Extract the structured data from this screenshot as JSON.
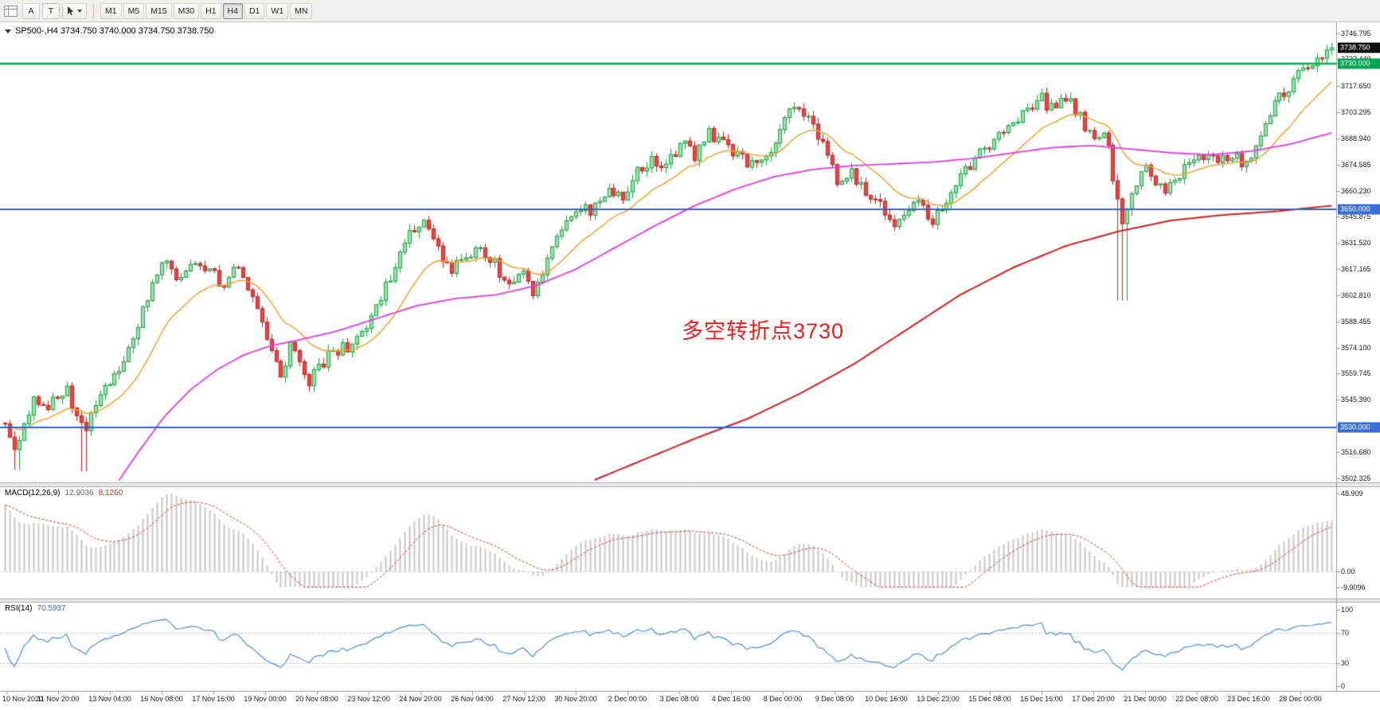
{
  "toolbar": {
    "tool_buttons": [
      {
        "label": "A"
      },
      {
        "label": "T"
      }
    ],
    "timeframes": [
      "M1",
      "M5",
      "M15",
      "M30",
      "H1",
      "H4",
      "D1",
      "W1",
      "MN"
    ],
    "active_timeframe": "H4"
  },
  "chart": {
    "symbol_line": "SP500-,H4  3734.750 3740.000 3734.750 3738.750",
    "annotation": {
      "text": "多空转折点3730",
      "color": "#f01e1e"
    },
    "price_axis_labels": [
      "3746.795",
      "3732.440",
      "3717.650",
      "3703.295",
      "3688.940",
      "3674.585",
      "3660.230",
      "3645.875",
      "3631.520",
      "3617.165",
      "3602.810",
      "3588.455",
      "3574.100",
      "3559.745",
      "3545.390",
      "3531.035",
      "3516.680",
      "3502.325"
    ],
    "badges": [
      {
        "value": "3738.750",
        "price": 3738.75,
        "bg": "#111111"
      },
      {
        "value": "3730.000",
        "price": 3730.0,
        "bg": "#00a651"
      },
      {
        "value": "3650.000",
        "price": 3650.0,
        "bg": "#3a6fd8"
      },
      {
        "value": "3530.000",
        "price": 3530.0,
        "bg": "#3a6fd8"
      }
    ],
    "hlines": [
      {
        "price": 3730.0,
        "color": "#00b050",
        "width": 2.4
      },
      {
        "price": 3650.0,
        "color": "#2f63c9",
        "width": 2
      },
      {
        "price": 3530.0,
        "color": "#2f63c9",
        "width": 2
      }
    ]
  },
  "macd": {
    "name": "MACD(12,26,9)",
    "value_main": "12.9036",
    "value_signal": "8.1260",
    "axis_labels": [
      "48.909",
      "0.00",
      "-9.9096"
    ]
  },
  "rsi": {
    "name": "RSI(14)",
    "value": "70.5937",
    "axis_labels": [
      "100",
      "70",
      "30",
      "0"
    ],
    "levels": [
      70,
      30
    ]
  },
  "chart_data": {
    "type": "candlestick",
    "symbol": "SP500-",
    "timeframe": "H4",
    "ohlc_current": {
      "open": 3734.75,
      "high": 3740.0,
      "low": 3734.75,
      "close": 3738.75
    },
    "price_range": [
      3500,
      3751
    ],
    "bar_count": 280,
    "last_close": 3738.75,
    "price_path": [
      [
        0.0,
        3534
      ],
      [
        0.008,
        3516
      ],
      [
        0.022,
        3548
      ],
      [
        0.032,
        3540
      ],
      [
        0.045,
        3552
      ],
      [
        0.06,
        3528
      ],
      [
        0.072,
        3548
      ],
      [
        0.086,
        3562
      ],
      [
        0.1,
        3587
      ],
      [
        0.109,
        3606
      ],
      [
        0.12,
        3621
      ],
      [
        0.132,
        3611
      ],
      [
        0.142,
        3621
      ],
      [
        0.155,
        3616
      ],
      [
        0.165,
        3606
      ],
      [
        0.175,
        3619
      ],
      [
        0.188,
        3601
      ],
      [
        0.198,
        3577
      ],
      [
        0.208,
        3558
      ],
      [
        0.217,
        3580
      ],
      [
        0.227,
        3554
      ],
      [
        0.237,
        3563
      ],
      [
        0.247,
        3572
      ],
      [
        0.26,
        3575
      ],
      [
        0.272,
        3587
      ],
      [
        0.283,
        3602
      ],
      [
        0.296,
        3621
      ],
      [
        0.306,
        3639
      ],
      [
        0.316,
        3645
      ],
      [
        0.326,
        3630
      ],
      [
        0.336,
        3615
      ],
      [
        0.346,
        3625
      ],
      [
        0.356,
        3628
      ],
      [
        0.369,
        3620
      ],
      [
        0.379,
        3605
      ],
      [
        0.389,
        3615
      ],
      [
        0.399,
        3602
      ],
      [
        0.408,
        3621
      ],
      [
        0.422,
        3645
      ],
      [
        0.432,
        3653
      ],
      [
        0.441,
        3648
      ],
      [
        0.455,
        3663
      ],
      [
        0.464,
        3656
      ],
      [
        0.474,
        3668
      ],
      [
        0.487,
        3677
      ],
      [
        0.497,
        3671
      ],
      [
        0.51,
        3687
      ],
      [
        0.52,
        3680
      ],
      [
        0.53,
        3692
      ],
      [
        0.543,
        3684
      ],
      [
        0.553,
        3679
      ],
      [
        0.563,
        3674
      ],
      [
        0.576,
        3682
      ],
      [
        0.59,
        3703
      ],
      [
        0.6,
        3705
      ],
      [
        0.61,
        3696
      ],
      [
        0.62,
        3681
      ],
      [
        0.629,
        3662
      ],
      [
        0.639,
        3670
      ],
      [
        0.649,
        3659
      ],
      [
        0.659,
        3655
      ],
      [
        0.669,
        3640
      ],
      [
        0.679,
        3648
      ],
      [
        0.688,
        3656
      ],
      [
        0.698,
        3643
      ],
      [
        0.708,
        3653
      ],
      [
        0.718,
        3668
      ],
      [
        0.728,
        3675
      ],
      [
        0.738,
        3682
      ],
      [
        0.751,
        3692
      ],
      [
        0.761,
        3699
      ],
      [
        0.771,
        3706
      ],
      [
        0.781,
        3711
      ],
      [
        0.79,
        3704
      ],
      [
        0.8,
        3713
      ],
      [
        0.81,
        3701
      ],
      [
        0.82,
        3687
      ],
      [
        0.83,
        3692
      ],
      [
        0.838,
        3655
      ],
      [
        0.843,
        3641
      ],
      [
        0.85,
        3659
      ],
      [
        0.857,
        3675
      ],
      [
        0.866,
        3668
      ],
      [
        0.876,
        3660
      ],
      [
        0.886,
        3670
      ],
      [
        0.896,
        3677
      ],
      [
        0.906,
        3682
      ],
      [
        0.916,
        3677
      ],
      [
        0.926,
        3680
      ],
      [
        0.935,
        3675
      ],
      [
        0.945,
        3687
      ],
      [
        0.955,
        3706
      ],
      [
        0.965,
        3716
      ],
      [
        0.975,
        3723
      ],
      [
        0.985,
        3731
      ],
      [
        1.0,
        3739
      ]
    ],
    "wick_events": [
      [
        0.01,
        3507
      ],
      [
        0.06,
        3506
      ],
      [
        0.842,
        3600
      ]
    ],
    "ma_medium_path": [
      [
        0.085,
        3500
      ],
      [
        0.1,
        3516
      ],
      [
        0.12,
        3536
      ],
      [
        0.14,
        3551
      ],
      [
        0.16,
        3562
      ],
      [
        0.18,
        3570
      ],
      [
        0.2,
        3575
      ],
      [
        0.22,
        3578
      ],
      [
        0.25,
        3583
      ],
      [
        0.28,
        3590
      ],
      [
        0.31,
        3597
      ],
      [
        0.34,
        3601
      ],
      [
        0.37,
        3603
      ],
      [
        0.4,
        3608
      ],
      [
        0.43,
        3617
      ],
      [
        0.46,
        3629
      ],
      [
        0.49,
        3641
      ],
      [
        0.52,
        3652
      ],
      [
        0.55,
        3661
      ],
      [
        0.58,
        3668
      ],
      [
        0.61,
        3672
      ],
      [
        0.64,
        3674
      ],
      [
        0.67,
        3675
      ],
      [
        0.7,
        3676
      ],
      [
        0.73,
        3678
      ],
      [
        0.76,
        3681
      ],
      [
        0.79,
        3684
      ],
      [
        0.82,
        3685
      ],
      [
        0.85,
        3683
      ],
      [
        0.88,
        3681
      ],
      [
        0.91,
        3680
      ],
      [
        0.94,
        3682
      ],
      [
        0.97,
        3686
      ],
      [
        1.0,
        3692
      ]
    ],
    "ma_slow_path": [
      [
        0.44,
        3500
      ],
      [
        0.48,
        3512
      ],
      [
        0.52,
        3524
      ],
      [
        0.56,
        3535
      ],
      [
        0.6,
        3549
      ],
      [
        0.64,
        3565
      ],
      [
        0.68,
        3584
      ],
      [
        0.72,
        3603
      ],
      [
        0.76,
        3618
      ],
      [
        0.8,
        3630
      ],
      [
        0.84,
        3638
      ],
      [
        0.88,
        3644
      ],
      [
        0.92,
        3647
      ],
      [
        0.96,
        3649
      ],
      [
        1.0,
        3652
      ]
    ],
    "dates": [
      "10 Nov 2020",
      "11 Nov 20:00",
      "13 Nov 04:00",
      "16 Nov 08:00",
      "17 Nov 16:00",
      "19 Nov 00:00",
      "20 Nov 08:00",
      "23 Nov 12:00",
      "24 Nov 20:00",
      "26 Nov 04:00",
      "27 Nov 12:00",
      "30 Nov 20:00",
      "2 Dec 00:00",
      "3 Dec 08:00",
      "4 Dec 16:00",
      "8 Dec 00:00",
      "9 Dec 08:00",
      "10 Dec 16:00",
      "13 Dec 23:00",
      "15 Dec 08:00",
      "16 Dec 16:00",
      "17 Dec 20:00",
      "21 Dec 00:00",
      "22 Dec 08:00",
      "23 Dec 16:00",
      "28 Dec 00:00"
    ],
    "macd_axis_max": 48.909,
    "macd_axis_min": -9.9096,
    "colors": {
      "up_fill": "#9fdfae",
      "up_stroke": "#17a13e",
      "down_fill": "#e84545",
      "down_stroke": "#c51f1f",
      "ma_fast": "#efa32f",
      "ma_medium": "#e23ae2",
      "ma_slow": "#d42020",
      "macd_hist": "#c6c6c6",
      "macd_signal": "#e03030",
      "rsi": "#4a8fd4"
    }
  }
}
